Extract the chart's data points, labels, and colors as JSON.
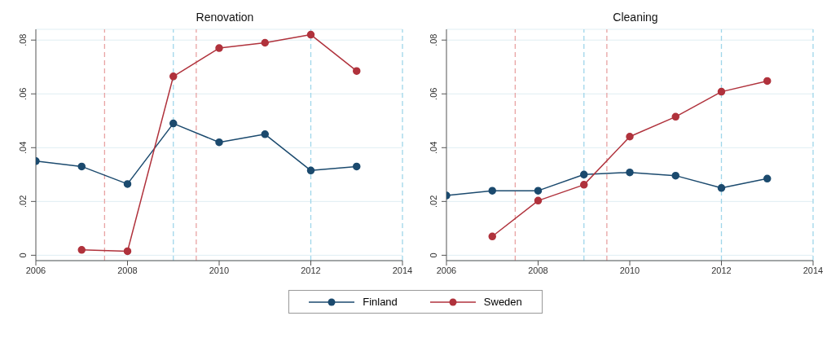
{
  "chart_data": [
    {
      "type": "line",
      "title": "Renovation",
      "x": [
        2006,
        2007,
        2008,
        2009,
        2010,
        2011,
        2012,
        2013
      ],
      "series": [
        {
          "name": "Finland",
          "color": "#1b4a6e",
          "values": [
            0.035,
            0.033,
            0.0265,
            0.049,
            0.042,
            0.045,
            0.0315,
            0.033
          ]
        },
        {
          "name": "Sweden",
          "color": "#b0323c",
          "values": [
            null,
            0.002,
            0.0015,
            0.0665,
            0.077,
            0.079,
            0.082,
            0.0685
          ]
        }
      ],
      "xlim": [
        2006,
        2014
      ],
      "xticks": [
        2006,
        2008,
        2010,
        2012,
        2014
      ],
      "ylim": [
        -0.002,
        0.084
      ],
      "yticks": [
        0,
        {
          "value": 0.02,
          "label": ".02"
        },
        {
          "value": 0.04,
          "label": ".04"
        },
        {
          "value": 0.06,
          "label": ".06"
        },
        {
          "value": 0.08,
          "label": ".08"
        }
      ],
      "ref_lines": [
        {
          "axis": "x",
          "value": 2007.5,
          "color": "#e8a3a3",
          "line_style": "dashed"
        },
        {
          "axis": "x",
          "value": 2009.5,
          "color": "#e8a3a3",
          "line_style": "dashed"
        },
        {
          "axis": "x",
          "value": 2009,
          "color": "#9fd6ea",
          "line_style": "dashed"
        },
        {
          "axis": "x",
          "value": 2012,
          "color": "#9fd6ea",
          "line_style": "dashed"
        },
        {
          "axis": "x",
          "value": 2014,
          "color": "#9fd6ea",
          "line_style": "dashed"
        }
      ],
      "grid": "y",
      "marker": "circle",
      "line_style": "solid",
      "legend": "bottom"
    },
    {
      "type": "line",
      "title": "Cleaning",
      "x": [
        2006,
        2007,
        2008,
        2009,
        2010,
        2011,
        2012,
        2013
      ],
      "series": [
        {
          "color": "#1b4a6e",
          "values": [
            0.0222,
            0.024,
            0.024,
            0.03,
            0.0308,
            0.0296,
            0.025,
            0.0285
          ]
        },
        {
          "color": "#b0323c",
          "values": [
            null,
            0.007,
            0.0203,
            0.0262,
            0.0441,
            0.0515,
            0.0608,
            0.0648
          ]
        }
      ],
      "xlim": [
        2006,
        2014
      ],
      "xticks": [
        2006,
        2008,
        2010,
        2012,
        2014
      ],
      "ylim": [
        -0.002,
        0.084
      ],
      "yticks": [
        0,
        {
          "value": 0.02,
          "label": ".02"
        },
        {
          "value": 0.04,
          "label": ".04"
        },
        {
          "value": 0.06,
          "label": ".06"
        },
        {
          "value": 0.08,
          "label": ".08"
        }
      ],
      "ref_lines": [
        {
          "axis": "x",
          "value": 2007.5,
          "color": "#e8a3a3",
          "line_style": "dashed"
        },
        {
          "axis": "x",
          "value": 2009.5,
          "color": "#e8a3a3",
          "line_style": "dashed"
        },
        {
          "axis": "x",
          "value": 2009,
          "color": "#9fd6ea",
          "line_style": "dashed"
        },
        {
          "axis": "x",
          "value": 2012,
          "color": "#9fd6ea",
          "line_style": "dashed"
        },
        {
          "axis": "x",
          "value": 2014,
          "color": "#9fd6ea",
          "line_style": "dashed"
        }
      ],
      "grid": "y",
      "marker": "circle",
      "line_style": "solid"
    }
  ]
}
